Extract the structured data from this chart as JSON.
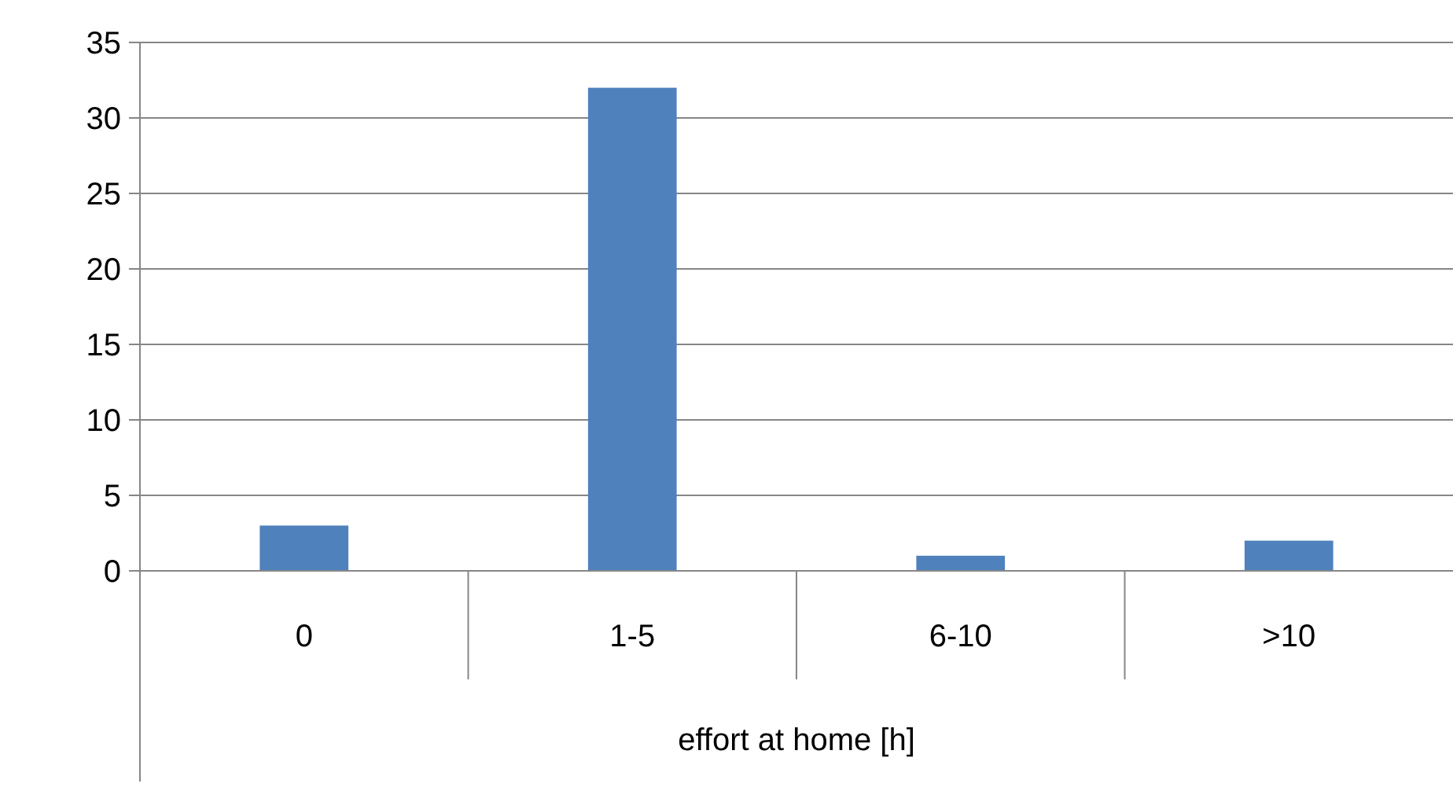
{
  "chart_data": {
    "type": "bar",
    "xlabel": "effort at home [h]",
    "categories": [
      "0",
      "1-5",
      "6-10",
      ">10"
    ],
    "values": [
      3,
      32,
      1,
      2
    ],
    "color": "#4f81bd",
    "ylim": [
      0,
      35
    ],
    "yticks": [
      0,
      5,
      10,
      15,
      20,
      25,
      30,
      35
    ],
    "grid": "y"
  }
}
